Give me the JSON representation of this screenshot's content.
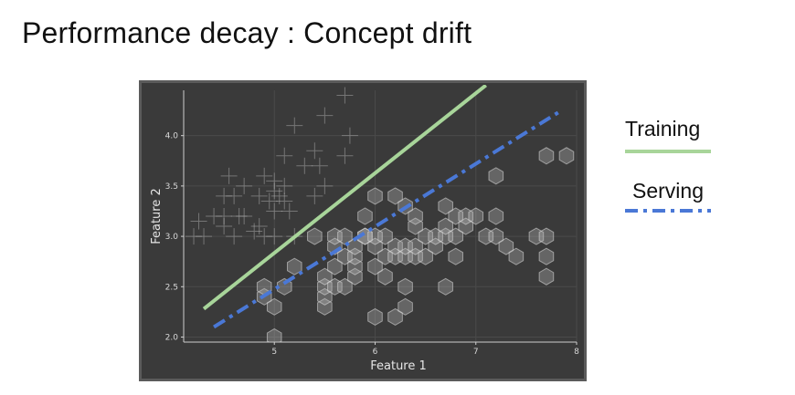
{
  "slide": {
    "title": "Performance decay : Concept drift"
  },
  "legend": {
    "training_label": "Training",
    "serving_label": "Serving"
  },
  "colors": {
    "training": "#a8d59a",
    "serving": "#4a78d6",
    "chart_bg": "#3a3a3a",
    "hex_fill": "#b8b8b8",
    "plus": "#bdbdbd"
  },
  "chart_data": {
    "type": "scatter",
    "xlabel": "Feature 1",
    "ylabel": "Feature 2",
    "xlim": [
      4.1,
      8.0
    ],
    "ylim": [
      1.95,
      4.45
    ],
    "xticks": [
      5,
      6,
      7,
      8
    ],
    "yticks": [
      2.0,
      2.5,
      3.0,
      3.5,
      4.0
    ],
    "ytick_labels": [
      "2.0",
      "2.5",
      "3.0",
      "3.5",
      "4.0"
    ],
    "grid": true,
    "series": [
      {
        "marker": "plus",
        "points": [
          [
            4.2,
            3.0
          ],
          [
            4.3,
            3.0
          ],
          [
            4.25,
            3.15
          ],
          [
            4.4,
            3.2
          ],
          [
            4.5,
            3.1
          ],
          [
            4.5,
            3.2
          ],
          [
            4.55,
            3.6
          ],
          [
            4.5,
            3.4
          ],
          [
            4.6,
            3.4
          ],
          [
            4.65,
            3.2
          ],
          [
            4.7,
            3.5
          ],
          [
            4.7,
            3.2
          ],
          [
            4.8,
            3.05
          ],
          [
            4.85,
            3.1
          ],
          [
            4.85,
            3.4
          ],
          [
            4.9,
            3.0
          ],
          [
            4.9,
            3.6
          ],
          [
            4.95,
            3.35
          ],
          [
            5.0,
            3.45
          ],
          [
            5.0,
            3.55
          ],
          [
            5.0,
            3.25
          ],
          [
            5.05,
            3.4
          ],
          [
            5.1,
            3.5
          ],
          [
            5.1,
            3.8
          ],
          [
            5.1,
            3.35
          ],
          [
            5.15,
            3.25
          ],
          [
            5.2,
            4.1
          ],
          [
            5.3,
            3.7
          ],
          [
            5.4,
            3.85
          ],
          [
            5.4,
            3.4
          ],
          [
            5.45,
            3.7
          ],
          [
            5.5,
            4.2
          ],
          [
            5.5,
            3.5
          ],
          [
            5.7,
            4.4
          ],
          [
            5.7,
            3.8
          ],
          [
            5.75,
            4.0
          ],
          [
            5.0,
            3.0
          ],
          [
            4.6,
            3.0
          ],
          [
            5.2,
            3.0
          ]
        ]
      },
      {
        "marker": "hexagon",
        "points": [
          [
            4.9,
            2.4
          ],
          [
            4.9,
            2.5
          ],
          [
            5.0,
            2.3
          ],
          [
            5.0,
            2.0
          ],
          [
            5.1,
            2.5
          ],
          [
            5.2,
            2.7
          ],
          [
            5.4,
            3.0
          ],
          [
            5.5,
            2.3
          ],
          [
            5.5,
            2.4
          ],
          [
            5.5,
            2.5
          ],
          [
            5.5,
            2.6
          ],
          [
            5.6,
            2.5
          ],
          [
            5.6,
            2.9
          ],
          [
            5.6,
            3.0
          ],
          [
            5.6,
            2.7
          ],
          [
            5.7,
            2.8
          ],
          [
            5.7,
            2.5
          ],
          [
            5.7,
            3.0
          ],
          [
            5.8,
            2.6
          ],
          [
            5.8,
            2.7
          ],
          [
            5.8,
            2.8
          ],
          [
            5.8,
            2.9
          ],
          [
            5.9,
            3.0
          ],
          [
            5.9,
            3.2
          ],
          [
            6.0,
            2.2
          ],
          [
            6.0,
            2.7
          ],
          [
            6.0,
            2.9
          ],
          [
            6.0,
            3.4
          ],
          [
            6.1,
            2.6
          ],
          [
            6.1,
            2.8
          ],
          [
            6.1,
            3.0
          ],
          [
            6.2,
            2.2
          ],
          [
            6.2,
            2.8
          ],
          [
            6.2,
            2.9
          ],
          [
            6.2,
            3.4
          ],
          [
            6.3,
            2.3
          ],
          [
            6.3,
            2.5
          ],
          [
            6.3,
            2.8
          ],
          [
            6.3,
            2.9
          ],
          [
            6.3,
            3.3
          ],
          [
            6.4,
            2.8
          ],
          [
            6.4,
            2.9
          ],
          [
            6.4,
            3.1
          ],
          [
            6.4,
            3.2
          ],
          [
            6.5,
            3.0
          ],
          [
            6.5,
            2.8
          ],
          [
            6.6,
            2.9
          ],
          [
            6.6,
            3.0
          ],
          [
            6.7,
            2.5
          ],
          [
            6.7,
            3.0
          ],
          [
            6.7,
            3.1
          ],
          [
            6.7,
            3.3
          ],
          [
            6.8,
            2.8
          ],
          [
            6.8,
            3.0
          ],
          [
            6.8,
            3.2
          ],
          [
            6.9,
            3.1
          ],
          [
            6.9,
            3.2
          ],
          [
            7.0,
            3.2
          ],
          [
            7.1,
            3.0
          ],
          [
            7.2,
            3.0
          ],
          [
            7.2,
            3.2
          ],
          [
            7.2,
            3.6
          ],
          [
            7.3,
            2.9
          ],
          [
            7.4,
            2.8
          ],
          [
            7.6,
            3.0
          ],
          [
            7.7,
            3.0
          ],
          [
            7.7,
            2.8
          ],
          [
            7.7,
            2.6
          ],
          [
            7.7,
            3.8
          ],
          [
            7.9,
            3.8
          ],
          [
            5.9,
            3.0
          ],
          [
            6.0,
            3.0
          ]
        ]
      }
    ],
    "lines": [
      {
        "name": "Training",
        "style": "solid",
        "points": [
          [
            4.3,
            2.28
          ],
          [
            7.1,
            4.5
          ]
        ]
      },
      {
        "name": "Serving",
        "style": "dashdot",
        "points": [
          [
            4.4,
            2.1
          ],
          [
            7.85,
            4.25
          ]
        ]
      }
    ]
  }
}
